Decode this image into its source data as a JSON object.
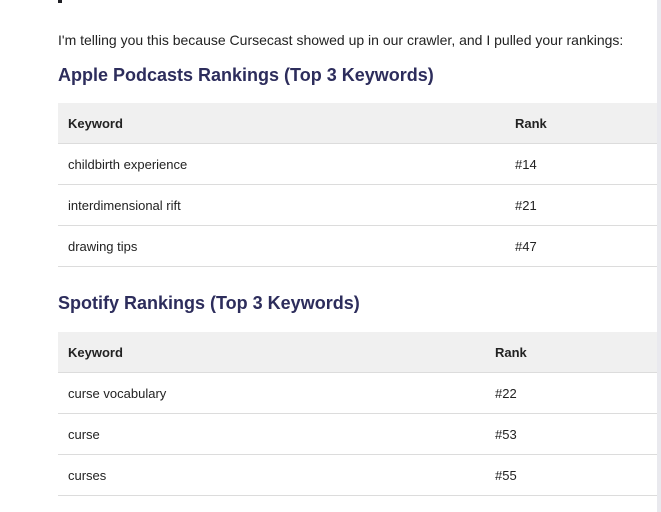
{
  "intro": "I'm telling you this because Cursecast showed up in our crawler, and I pulled your rankings:",
  "apple": {
    "title": "Apple Podcasts Rankings (Top 3 Keywords)",
    "headers": {
      "keyword": "Keyword",
      "rank": "Rank"
    },
    "rows": [
      {
        "keyword": "childbirth experience",
        "rank": "#14"
      },
      {
        "keyword": "interdimensional rift",
        "rank": "#21"
      },
      {
        "keyword": "drawing tips",
        "rank": "#47"
      }
    ]
  },
  "spotify": {
    "title": "Spotify Rankings (Top 3 Keywords)",
    "headers": {
      "keyword": "Keyword",
      "rank": "Rank"
    },
    "rows": [
      {
        "keyword": "curse vocabulary",
        "rank": "#22"
      },
      {
        "keyword": "curse",
        "rank": "#53"
      },
      {
        "keyword": "curses",
        "rank": "#55"
      }
    ]
  },
  "colors": {
    "heading": "#2d2d5c",
    "table_header_bg": "#f0f0f0",
    "row_divider": "#dcdcdc"
  }
}
